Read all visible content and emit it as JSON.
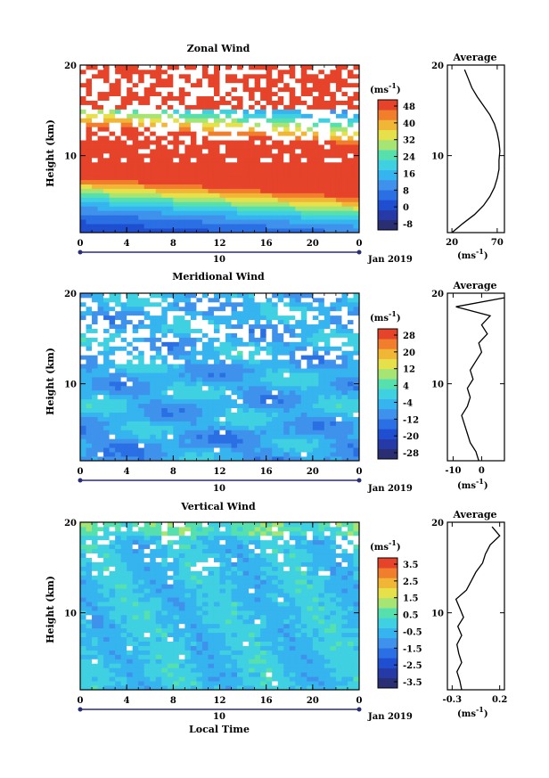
{
  "colors": {
    "palette": [
      "#2a2e72",
      "#253aa6",
      "#1f4fd0",
      "#2a6fe4",
      "#3f92ec",
      "#35b4ef",
      "#3fd1e2",
      "#56e0ae",
      "#a6e474",
      "#e6e04a",
      "#f2b636",
      "#f07e2c",
      "#e6432b"
    ]
  },
  "chart_data": [
    {
      "type": "heatmap",
      "title": "Zonal Wind",
      "xlabel": "",
      "ylabel": "Height (km)",
      "xlim": [
        0,
        24
      ],
      "ylim": [
        1.5,
        20
      ],
      "xticks": [
        "0",
        "4",
        "8",
        "12",
        "16",
        "20",
        "0"
      ],
      "yticks": [
        "10",
        "20"
      ],
      "date_day": "10",
      "date_label": "Jan 2019",
      "unit_label": "(ms",
      "unit_exp": "-1",
      "colorbar": {
        "ticks": [
          "48",
          "40",
          "32",
          "24",
          "16",
          "8",
          "0",
          "-8"
        ],
        "range": [
          -12,
          52
        ]
      },
      "profile": {
        "title": "Average",
        "xlim": [
          15,
          78
        ],
        "xticks": [
          "20",
          "70"
        ],
        "yticks": [
          "10",
          "20"
        ],
        "unit_label": "(ms",
        "unit_exp": "-1",
        "heights": [
          1.5,
          2.5,
          3.5,
          4.5,
          5.5,
          6.5,
          7.5,
          8.5,
          9.5,
          10.5,
          11.5,
          12.5,
          13.5,
          14.5,
          15.5,
          16.5,
          17.5,
          18.5,
          19.5
        ],
        "values": [
          20,
          32,
          45,
          55,
          62,
          67,
          70,
          72,
          72,
          73,
          72,
          70,
          67,
          62,
          55,
          48,
          42,
          38,
          34
        ]
      }
    },
    {
      "type": "heatmap",
      "title": "Meridional Wind",
      "xlabel": "",
      "ylabel": "Height (km)",
      "xlim": [
        0,
        24
      ],
      "ylim": [
        1.5,
        20
      ],
      "xticks": [
        "0",
        "4",
        "8",
        "12",
        "16",
        "20",
        "0"
      ],
      "yticks": [
        "10",
        "20"
      ],
      "date_day": "10",
      "date_label": "Jan 2019",
      "unit_label": "(ms",
      "unit_exp": "-1",
      "colorbar": {
        "ticks": [
          "28",
          "20",
          "12",
          "4",
          "-4",
          "-12",
          "-20",
          "-28"
        ],
        "range": [
          -30,
          30
        ]
      },
      "profile": {
        "title": "Average",
        "xlim": [
          -12,
          8
        ],
        "xticks": [
          "-10",
          "0"
        ],
        "yticks": [
          "10",
          "20"
        ],
        "unit_label": "(ms",
        "unit_exp": "-1",
        "heights": [
          1.5,
          2.5,
          3.5,
          4.5,
          5.5,
          6.5,
          7.5,
          8.5,
          9.5,
          10.5,
          11.5,
          12.5,
          13.5,
          14.5,
          15.5,
          16.5,
          17.5,
          18.5,
          19.5
        ],
        "values": [
          -1,
          -2,
          -4,
          -5,
          -6,
          -7,
          -5,
          -4,
          -5,
          -3,
          -4,
          -2,
          0,
          -1,
          2,
          0,
          3,
          -9,
          8
        ]
      }
    },
    {
      "type": "heatmap",
      "title": "Vertical Wind",
      "xlabel": "Local Time",
      "ylabel": "Height (km)",
      "xlim": [
        0,
        24
      ],
      "ylim": [
        1.5,
        20
      ],
      "xticks": [
        "0",
        "4",
        "8",
        "12",
        "16",
        "20",
        "0"
      ],
      "yticks": [
        "10",
        "20"
      ],
      "date_day": "10",
      "date_label": "Jan 2019",
      "unit_label": "(ms",
      "unit_exp": "-1",
      "colorbar": {
        "ticks": [
          "3.5",
          "2.5",
          "1.5",
          "0.5",
          "-0.5",
          "-1.5",
          "-2.5",
          "-3.5"
        ],
        "range": [
          -4,
          4
        ]
      },
      "profile": {
        "title": "Average",
        "xlim": [
          -0.35,
          0.25
        ],
        "xticks": [
          "-0.3",
          "0.2"
        ],
        "yticks": [
          "10",
          "20"
        ],
        "unit_label": "(ms",
        "unit_exp": "-1",
        "heights": [
          1.5,
          2.5,
          3.5,
          4.5,
          5.5,
          6.5,
          7.5,
          8.5,
          9.5,
          10.5,
          11.5,
          12.5,
          13.5,
          14.5,
          15.5,
          16.5,
          17.5,
          18.5,
          19.5
        ],
        "values": [
          -0.2,
          -0.22,
          -0.25,
          -0.2,
          -0.23,
          -0.25,
          -0.2,
          -0.24,
          -0.18,
          -0.22,
          -0.26,
          -0.15,
          -0.1,
          -0.05,
          0.02,
          0.05,
          0.1,
          0.2,
          0.12
        ]
      }
    }
  ]
}
